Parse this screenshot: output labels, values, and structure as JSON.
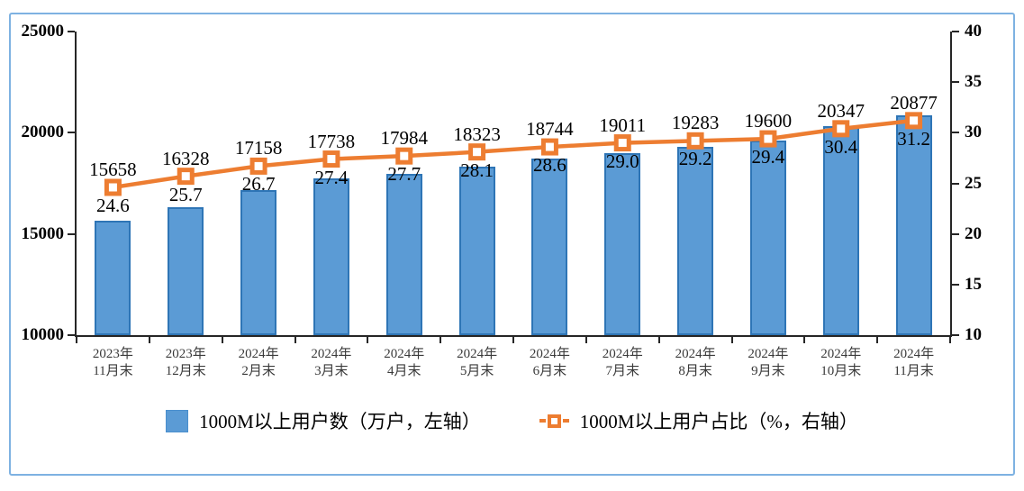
{
  "frame": {
    "border_color": "#7EB2E2",
    "background": "#FFFFFF"
  },
  "chart_data": {
    "type": "combo-bar-line",
    "title": "",
    "grid": false,
    "legend_position": "bottom",
    "categories": [
      [
        "2023年",
        "11月末"
      ],
      [
        "2023年",
        "12月末"
      ],
      [
        "2024年",
        "2月末"
      ],
      [
        "2024年",
        "3月末"
      ],
      [
        "2024年",
        "4月末"
      ],
      [
        "2024年",
        "5月末"
      ],
      [
        "2024年",
        "6月末"
      ],
      [
        "2024年",
        "7月末"
      ],
      [
        "2024年",
        "8月末"
      ],
      [
        "2024年",
        "9月末"
      ],
      [
        "2024年",
        "10月末"
      ],
      [
        "2024年",
        "11月末"
      ]
    ],
    "series": [
      {
        "name": "1000M以上用户数（万户，左轴）",
        "type": "bar",
        "axis": "left",
        "color": "#5B9BD5",
        "border_color": "#2E75B6",
        "values": [
          15658,
          16328,
          17158,
          17738,
          17984,
          18323,
          18744,
          19011,
          19283,
          19600,
          20347,
          20877
        ]
      },
      {
        "name": "1000M以上用户占比（%，右轴）",
        "type": "line",
        "axis": "right",
        "color": "#ED7D31",
        "marker": "square",
        "values": [
          24.6,
          25.7,
          26.7,
          27.4,
          27.7,
          28.1,
          28.6,
          29.0,
          29.2,
          29.4,
          30.4,
          31.2
        ]
      }
    ],
    "left_axis": {
      "min": 10000,
      "max": 25000,
      "tick_step": 5000,
      "ticks": [
        25000,
        20000,
        15000,
        10000
      ]
    },
    "right_axis": {
      "min": 10,
      "max": 40,
      "tick_step": 5,
      "ticks": [
        40,
        35,
        30,
        25,
        20,
        15,
        10
      ]
    },
    "axis_color": "#262626",
    "label_color": "#000000"
  }
}
